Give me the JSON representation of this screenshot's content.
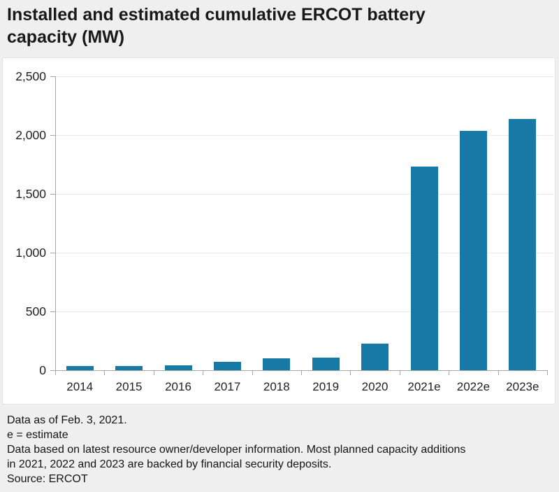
{
  "title_lines": [
    "Installed and estimated cumulative ERCOT battery",
    "capacity (MW)"
  ],
  "chart_data": {
    "type": "bar",
    "title": "Installed and estimated cumulative ERCOT battery capacity (MW)",
    "categories": [
      "2014",
      "2015",
      "2016",
      "2017",
      "2018",
      "2019",
      "2020",
      "2021e",
      "2022e",
      "2023e"
    ],
    "values": [
      36,
      36,
      40,
      71,
      100,
      106,
      225,
      1731,
      2035,
      2135
    ],
    "xlabel": "",
    "ylabel": "",
    "ylim": [
      0,
      2500
    ],
    "yticks": [
      0,
      500,
      1000,
      1500,
      2000,
      2500
    ],
    "ytick_labels": [
      "0",
      "500",
      "1,000",
      "1,500",
      "2,000",
      "2,500"
    ],
    "grid": true,
    "legend": "none",
    "bar_color": "#177aa6"
  },
  "footnotes": [
    "Data as of Feb. 3, 2021.",
    "e = estimate",
    "Data based on latest resource owner/developer information. Most planned capacity additions",
    "in 2021, 2022 and 2023 are backed by financial security deposits.",
    "Source: ERCOT"
  ],
  "colors": {
    "page_background": "#efeff0",
    "card_background": "#ffffff",
    "bar": "#177aa6",
    "axis": "#a6a6a6",
    "gridline": "#e9e9e9",
    "text": "#191919"
  }
}
